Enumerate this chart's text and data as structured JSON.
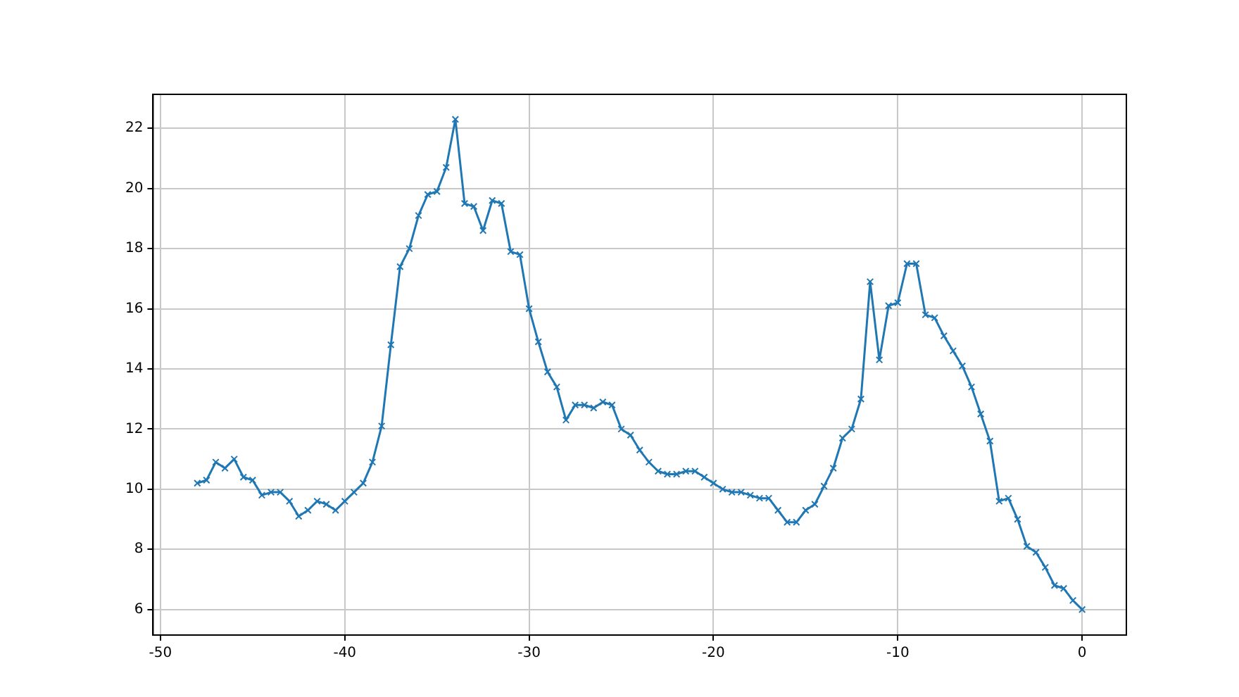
{
  "chart_data": {
    "type": "line",
    "marker": "cross",
    "grid": true,
    "line_style": "solid",
    "xlim": [
      -50.4,
      2.4
    ],
    "xticks": [
      -50,
      -40,
      -30,
      -20,
      -10,
      0
    ],
    "ylim": [
      5.15,
      23.13
    ],
    "yticks": [
      6,
      8,
      10,
      12,
      14,
      16,
      18,
      20,
      22
    ],
    "x": [
      -48,
      -47.5,
      -47,
      -46.5,
      -46,
      -45.5,
      -45,
      -44.5,
      -44,
      -43.5,
      -43,
      -42.5,
      -42,
      -41.5,
      -41,
      -40.5,
      -40,
      -39.5,
      -39,
      -38.5,
      -38,
      -37.5,
      -37,
      -36.5,
      -36,
      -35.5,
      -35,
      -34.5,
      -34,
      -33.5,
      -33,
      -32.5,
      -32,
      -31.5,
      -31,
      -30.5,
      -30,
      -29.5,
      -29,
      -28.5,
      -28,
      -27.5,
      -27,
      -26.5,
      -26,
      -25.5,
      -25,
      -24.5,
      -24,
      -23.5,
      -23,
      -22.5,
      -22,
      -21.5,
      -21,
      -20.5,
      -20,
      -19.5,
      -19,
      -18.5,
      -18,
      -17.5,
      -17,
      -16.5,
      -16,
      -15.5,
      -15,
      -14.5,
      -14,
      -13.5,
      -13,
      -12.5,
      -12,
      -11.5,
      -11,
      -10.5,
      -10,
      -9.5,
      -9,
      -8.5,
      -8,
      -7.5,
      -7,
      -6.5,
      -6,
      -5.5,
      -5,
      -4.5,
      -4,
      -3.5,
      -3,
      -2.5,
      -2,
      -1.5,
      -1,
      -0.5,
      0
    ],
    "series": [
      {
        "color": "#1f77b4",
        "values": [
          10.2,
          10.3,
          10.9,
          10.7,
          11.0,
          10.4,
          10.3,
          9.8,
          9.9,
          9.9,
          9.6,
          9.1,
          9.3,
          9.6,
          9.5,
          9.3,
          9.6,
          9.9,
          10.2,
          10.9,
          12.1,
          14.8,
          17.4,
          18.0,
          19.1,
          19.8,
          19.9,
          20.7,
          22.3,
          19.5,
          19.4,
          18.6,
          19.6,
          19.5,
          17.9,
          17.8,
          16.0,
          14.9,
          13.9,
          13.4,
          12.3,
          12.8,
          12.8,
          12.7,
          12.9,
          12.8,
          12.0,
          11.8,
          11.3,
          10.9,
          10.6,
          10.5,
          10.5,
          10.6,
          10.6,
          10.4,
          10.2,
          10.0,
          9.9,
          9.9,
          9.8,
          9.7,
          9.7,
          9.3,
          8.9,
          8.9,
          9.3,
          9.5,
          10.1,
          10.7,
          11.7,
          12.0,
          13.0,
          16.9,
          14.3,
          16.1,
          16.2,
          17.5,
          17.5,
          15.8,
          15.7,
          15.1,
          14.6,
          14.1,
          13.4,
          12.5,
          11.6,
          9.6,
          9.7,
          9.0,
          8.1,
          7.9,
          7.4,
          6.8,
          6.7,
          6.3,
          6.0
        ]
      }
    ]
  }
}
